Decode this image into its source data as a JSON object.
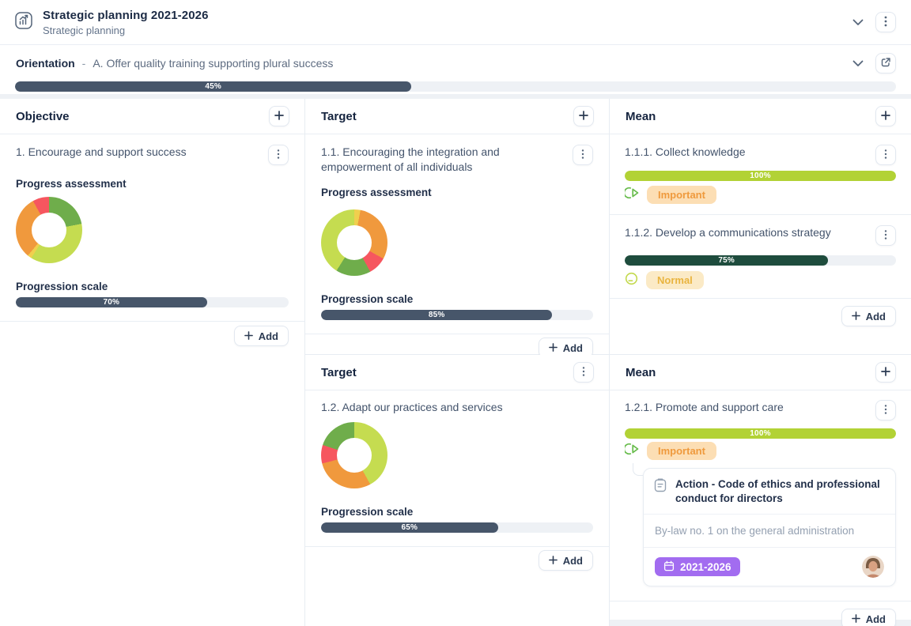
{
  "header": {
    "title": "Strategic planning 2021-2026",
    "subtitle": "Strategic planning"
  },
  "orientation": {
    "label": "Orientation",
    "separator": "-",
    "text": "A. Offer quality training supporting plural success",
    "progress": {
      "value": 45,
      "label": "45%",
      "color": "#47566a"
    }
  },
  "board": {
    "objective": {
      "header": "Objective",
      "item": {
        "title": "1. Encourage and support success",
        "assessment_label": "Progress assessment",
        "scale_label": "Progression scale",
        "progress": {
          "value": 70,
          "label": "70%",
          "color": "#47566a"
        }
      },
      "add_label": "Add"
    },
    "target1": {
      "header": "Target",
      "item": {
        "title": "1.1. Encouraging the integration and empowerment of all individuals",
        "assessment_label": "Progress assessment",
        "scale_label": "Progression scale",
        "progress": {
          "value": 85,
          "label": "85%",
          "color": "#47566a"
        }
      },
      "add_label": "Add"
    },
    "target2": {
      "header": "Target",
      "item": {
        "title": "1.2. Adapt our practices and services",
        "scale_label": "Progression scale",
        "progress": {
          "value": 65,
          "label": "65%",
          "color": "#47566a"
        }
      },
      "add_label": "Add"
    },
    "mean1": {
      "header": "Mean",
      "items": [
        {
          "title": "1.1.1. Collect knowledge",
          "progress": {
            "value": 100,
            "label": "100%",
            "color": "#b2d235"
          },
          "status_icon": "fast-forward-icon",
          "badge": {
            "text": "Important",
            "bg": "#fcdeb4",
            "color": "#ef9a3d"
          }
        },
        {
          "title": "1.1.2. Develop a communications strategy",
          "progress": {
            "value": 75,
            "label": "75%",
            "color": "#1e4c3d"
          },
          "status_icon": "neutral-circle-icon",
          "badge": {
            "text": "Normal",
            "bg": "#fbeac6",
            "color": "#e9b43f"
          }
        }
      ],
      "add_label": "Add"
    },
    "mean2": {
      "header": "Mean",
      "item": {
        "title": "1.2.1. Promote and support care",
        "progress": {
          "value": 100,
          "label": "100%",
          "color": "#b2d235"
        },
        "status_icon": "fast-forward-icon",
        "badge": {
          "text": "Important",
          "bg": "#fcdeb4",
          "color": "#ef9a3d"
        },
        "card": {
          "icon": "clipboard-icon",
          "title": "Action - Code of ethics and professional conduct for directors",
          "description": "By-law no. 1 on the general administration",
          "period": "2021-2026",
          "period_bg": "#a26cf0",
          "period_icon": "calendar-icon",
          "assignee_icon": "avatar"
        }
      },
      "add_label": "Add"
    }
  },
  "chart_data": [
    {
      "type": "pie",
      "variant": "donut",
      "title": "Progress assessment - Objective 1",
      "segments": [
        {
          "label": "green",
          "color": "#6fad4b",
          "value": 22
        },
        {
          "label": "lime",
          "color": "#c5dc50",
          "value": 37
        },
        {
          "label": "yellow",
          "color": "#f0cf4e",
          "value": 2
        },
        {
          "label": "orange",
          "color": "#f0993d",
          "value": 31
        },
        {
          "label": "red",
          "color": "#f6565f",
          "value": 8
        }
      ]
    },
    {
      "type": "pie",
      "variant": "donut",
      "title": "Progress assessment - Target 1.1",
      "segments": [
        {
          "label": "yellow",
          "color": "#f0cf4e",
          "value": 3
        },
        {
          "label": "orange",
          "color": "#f0993d",
          "value": 30
        },
        {
          "label": "red",
          "color": "#f6565f",
          "value": 9
        },
        {
          "label": "green",
          "color": "#6fad4b",
          "value": 17
        },
        {
          "label": "lime",
          "color": "#c5dc50",
          "value": 41
        }
      ]
    },
    {
      "type": "pie",
      "variant": "donut",
      "title": "Progress assessment - Target 1.2",
      "segments": [
        {
          "label": "lime",
          "color": "#c5dc50",
          "value": 42
        },
        {
          "label": "orange",
          "color": "#f0993d",
          "value": 29
        },
        {
          "label": "red",
          "color": "#f6565f",
          "value": 9
        },
        {
          "label": "green",
          "color": "#6fad4b",
          "value": 20
        }
      ]
    }
  ],
  "icons": {
    "app": "bar-chart-icon",
    "collapse": "chevron-down-icon",
    "menu": "kebab-menu-icon",
    "open": "external-link-icon",
    "add": "plus-icon",
    "important_status": "fast-forward-icon",
    "normal_status": "neutral-circle-icon",
    "action": "clipboard-icon",
    "period": "calendar-icon",
    "assignee": "avatar"
  }
}
